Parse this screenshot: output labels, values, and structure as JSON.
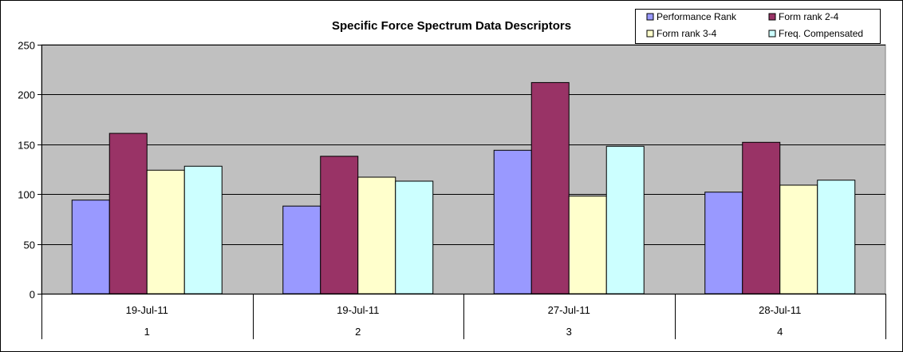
{
  "chart_data": {
    "type": "bar",
    "title": "Specific Force Spectrum Data Descriptors",
    "xlabel": "",
    "ylabel": "",
    "ylim": [
      0,
      250
    ],
    "yticks": [
      0,
      50,
      100,
      150,
      200,
      250
    ],
    "grid": true,
    "legend_position": "top-right",
    "categories": [
      {
        "date": "19-Jul-11",
        "index": "1"
      },
      {
        "date": "19-Jul-11",
        "index": "2"
      },
      {
        "date": "27-Jul-11",
        "index": "3"
      },
      {
        "date": "28-Jul-11",
        "index": "4"
      }
    ],
    "series": [
      {
        "name": "Performance Rank",
        "color": "#9999FF",
        "values": [
          94,
          88,
          144,
          102
        ]
      },
      {
        "name": "Form rank 2-4",
        "color": "#993366",
        "values": [
          161,
          138,
          212,
          152
        ]
      },
      {
        "name": "Form rank 3-4",
        "color": "#FFFFCC",
        "values": [
          124,
          117,
          98,
          109
        ]
      },
      {
        "name": "Freq. Compensated",
        "color": "#CCFFFF",
        "values": [
          128,
          113,
          148,
          114
        ]
      }
    ],
    "plot_background": "#C0C0C0"
  }
}
